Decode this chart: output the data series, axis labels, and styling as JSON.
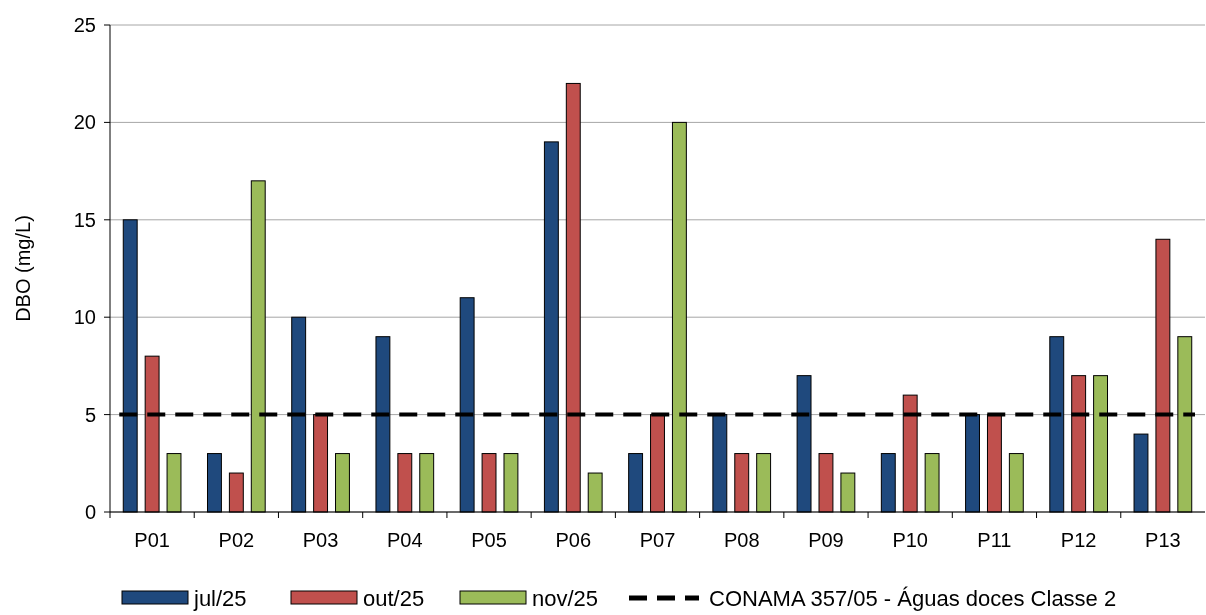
{
  "chart_data": {
    "type": "bar",
    "ylabel": "DBO (mg/L)",
    "categories": [
      "P01",
      "P02",
      "P03",
      "P04",
      "P05",
      "P06",
      "P07",
      "P08",
      "P09",
      "P10",
      "P11",
      "P12",
      "P13"
    ],
    "series": [
      {
        "name": "jul/25",
        "color": "#1f497d",
        "values": [
          15,
          3,
          10,
          9,
          11,
          19,
          3,
          5,
          7,
          3,
          5,
          9,
          4
        ]
      },
      {
        "name": "out/25",
        "color": "#c0504d",
        "values": [
          8,
          2,
          5,
          3,
          3,
          22,
          5,
          3,
          3,
          6,
          5,
          7,
          14
        ]
      },
      {
        "name": "nov/25",
        "color": "#9bbb59",
        "values": [
          3,
          17,
          3,
          3,
          3,
          2,
          20,
          3,
          2,
          3,
          3,
          7,
          9
        ]
      }
    ],
    "ylim": [
      0,
      25
    ],
    "yticks": [
      0,
      5,
      10,
      15,
      20,
      25
    ],
    "grid": "y",
    "legend": "bottom",
    "ref_lines": [
      {
        "axis": "y",
        "value": 5,
        "label": "CONAMA 357/05 - Águas doces Classe 2",
        "color": "#000000",
        "line_style": "dashed"
      }
    ]
  }
}
